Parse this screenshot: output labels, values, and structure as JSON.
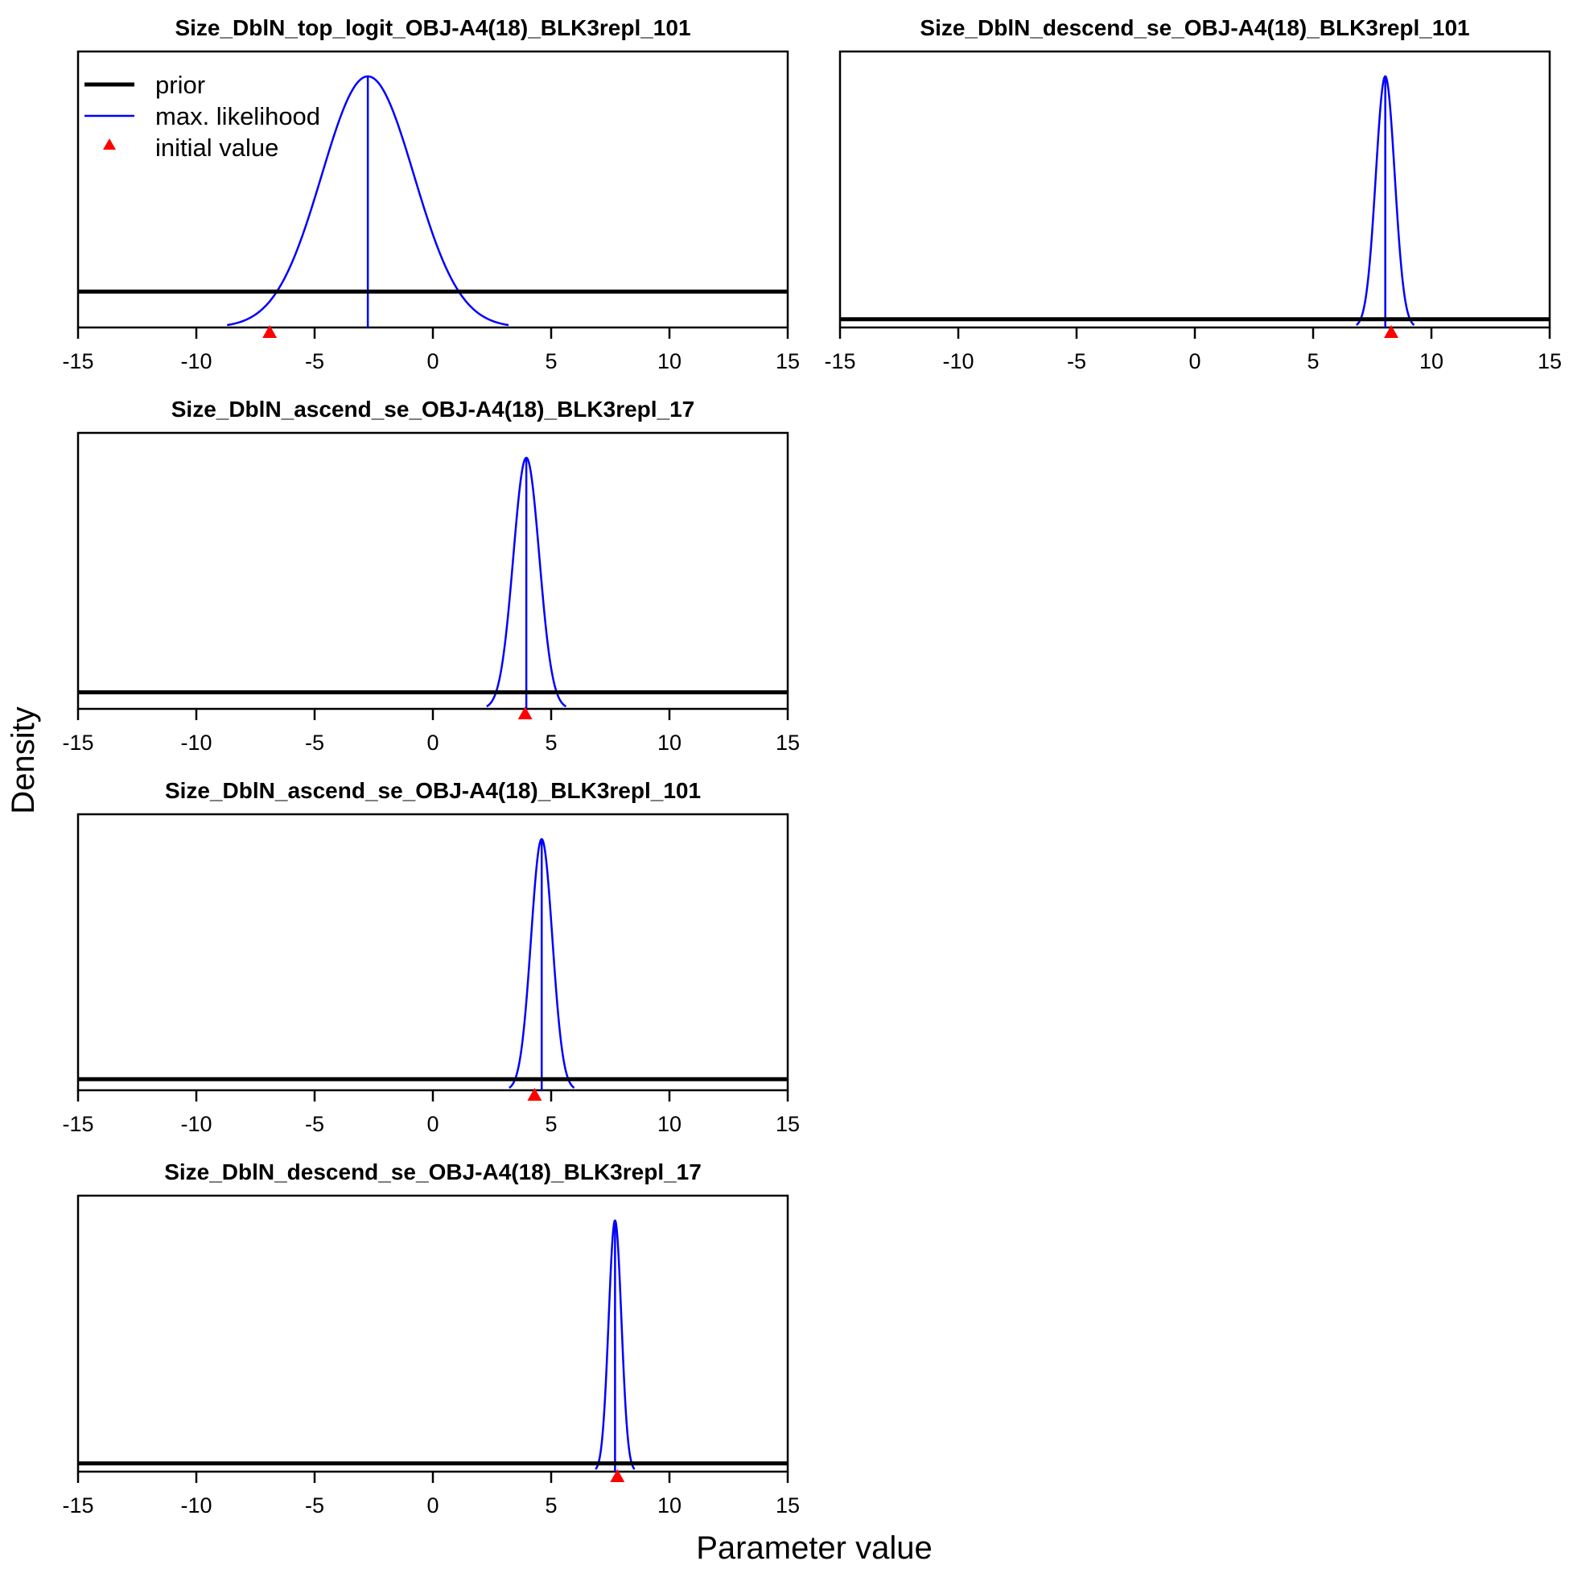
{
  "figure": {
    "xlabel": "Parameter value",
    "ylabel": "Density"
  },
  "legend": {
    "items": [
      {
        "label": "prior",
        "style": "thick-line",
        "color": "#000000"
      },
      {
        "label": "max. likelihood",
        "style": "line",
        "color": "#0000FF"
      },
      {
        "label": "initial value",
        "style": "triangle",
        "color": "#FF0000"
      }
    ],
    "placement": "top-left of first panel"
  },
  "chart_data": [
    {
      "type": "line",
      "title": "Size_DblN_top_logit_OBJ-A4(18)_BLK3repl_101",
      "xlim": [
        -15,
        15
      ],
      "xticks": [
        -15,
        -10,
        -5,
        0,
        5,
        10,
        15
      ],
      "series": [
        {
          "name": "prior",
          "kind": "uniform",
          "relative_height": 0.13
        },
        {
          "name": "max. likelihood",
          "kind": "normal",
          "mean": -2.75,
          "sd": 1.95
        }
      ],
      "initial_value": -6.9
    },
    {
      "type": "line",
      "title": "Size_DblN_descend_se_OBJ-A4(18)_BLK3repl_101",
      "xlim": [
        -15,
        15
      ],
      "xticks": [
        -15,
        -10,
        -5,
        0,
        5,
        10,
        15
      ],
      "series": [
        {
          "name": "prior",
          "kind": "uniform",
          "relative_height": 0.03
        },
        {
          "name": "max. likelihood",
          "kind": "normal",
          "mean": 8.05,
          "sd": 0.4
        }
      ],
      "initial_value": 8.3
    },
    {
      "type": "line",
      "title": "Size_DblN_ascend_se_OBJ-A4(18)_BLK3repl_17",
      "xlim": [
        -15,
        15
      ],
      "xticks": [
        -15,
        -10,
        -5,
        0,
        5,
        10,
        15
      ],
      "series": [
        {
          "name": "prior",
          "kind": "uniform",
          "relative_height": 0.06
        },
        {
          "name": "max. likelihood",
          "kind": "normal",
          "mean": 3.95,
          "sd": 0.55
        }
      ],
      "initial_value": 3.9
    },
    {
      "type": "line",
      "title": "Size_DblN_ascend_se_OBJ-A4(18)_BLK3repl_101",
      "xlim": [
        -15,
        15
      ],
      "xticks": [
        -15,
        -10,
        -5,
        0,
        5,
        10,
        15
      ],
      "series": [
        {
          "name": "prior",
          "kind": "uniform",
          "relative_height": 0.04
        },
        {
          "name": "max. likelihood",
          "kind": "normal",
          "mean": 4.6,
          "sd": 0.45
        }
      ],
      "initial_value": 4.3
    },
    {
      "type": "line",
      "title": "Size_DblN_descend_se_OBJ-A4(18)_BLK3repl_17",
      "xlim": [
        -15,
        15
      ],
      "xticks": [
        -15,
        -10,
        -5,
        0,
        5,
        10,
        15
      ],
      "series": [
        {
          "name": "prior",
          "kind": "uniform",
          "relative_height": 0.03
        },
        {
          "name": "max. likelihood",
          "kind": "normal",
          "mean": 7.7,
          "sd": 0.27
        }
      ],
      "initial_value": 7.8
    }
  ]
}
